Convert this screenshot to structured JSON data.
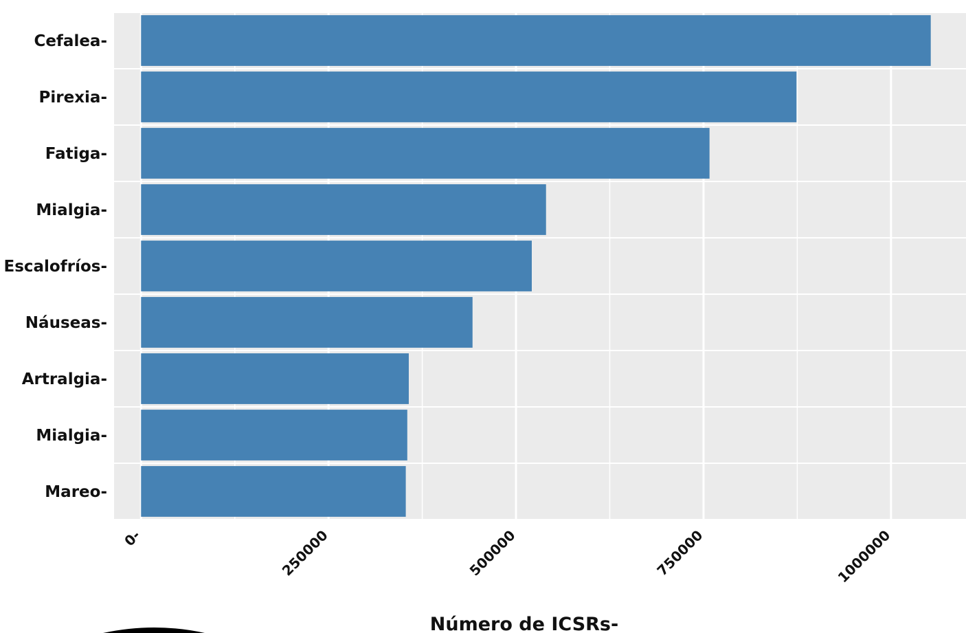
{
  "chart_data": {
    "type": "bar",
    "orientation": "horizontal",
    "title": "",
    "xlabel": "Número de ICSRs-",
    "ylabel": "",
    "categories": [
      "Cefalea-",
      "Pirexia-",
      "Fatiga-",
      "Mialgia-",
      "Escalofríos-",
      "Náuseas-",
      "Artralgia-",
      "Mialgia-",
      "Mareo-"
    ],
    "values": [
      1053000,
      874000,
      758000,
      540000,
      521000,
      442000,
      357000,
      355000,
      353000
    ],
    "xticks": [
      0,
      250000,
      500000,
      750000,
      1000000
    ],
    "xtick_labels": [
      "0-",
      "250000",
      "500000",
      "750000",
      "1000000"
    ],
    "xlim": [
      -36000,
      1100000
    ],
    "grid": true,
    "colors": {
      "bar": "#4682b4",
      "panel": "#ebebeb",
      "grid": "#ffffff"
    }
  }
}
